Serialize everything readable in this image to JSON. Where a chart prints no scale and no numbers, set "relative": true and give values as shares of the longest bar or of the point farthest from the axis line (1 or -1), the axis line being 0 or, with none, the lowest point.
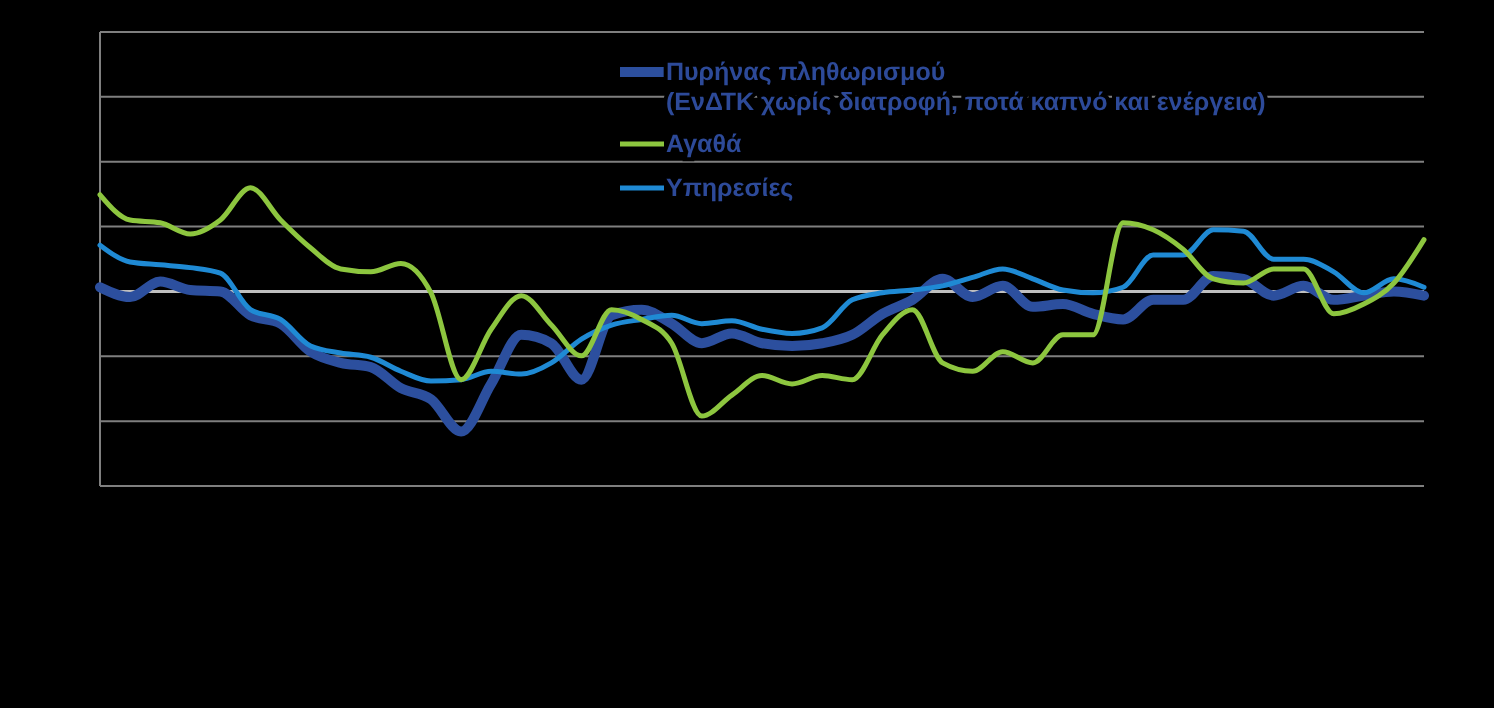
{
  "chart_data": {
    "type": "line",
    "relative": true,
    "grid": "y",
    "legend": "top",
    "line_style": "solid",
    "categories": [
      null,
      null,
      null,
      null,
      null,
      null,
      null,
      null,
      null,
      null,
      null,
      null,
      null,
      null,
      null,
      null,
      null,
      null,
      null,
      null,
      null,
      null,
      null,
      null,
      null,
      null,
      null,
      null,
      null,
      null,
      null,
      null,
      null,
      null,
      null,
      null,
      null,
      null,
      null,
      null,
      null,
      null,
      null,
      null,
      null
    ],
    "series": [
      {
        "name": "Πυρήνας πληθωρισμού\n(ΕνΔΤΚ χωρίς διατροφή, ποτά καπνό και ενέργεια)",
        "color": "#2c4f9e",
        "values": [
          0.03,
          -0.04,
          0.07,
          0.01,
          0,
          -0.17,
          -0.23,
          -0.43,
          -0.51,
          -0.54,
          -0.69,
          -0.77,
          -1,
          -0.66,
          -0.31,
          -0.37,
          -0.63,
          -0.17,
          -0.13,
          -0.23,
          -0.37,
          -0.3,
          -0.37,
          -0.39,
          -0.37,
          -0.31,
          -0.16,
          -0.06,
          0.09,
          -0.04,
          0.04,
          -0.11,
          -0.09,
          -0.16,
          -0.2,
          -0.06,
          -0.06,
          0.11,
          0.09,
          -0.03,
          0.04,
          -0.06,
          -0.03,
          0,
          -0.03
        ]
      },
      {
        "name": "Αγαθά",
        "color": "#8dc63f",
        "values": [
          0.69,
          0.51,
          0.49,
          0.41,
          0.51,
          0.74,
          0.51,
          0.31,
          0.16,
          0.14,
          0.2,
          -0.01,
          -0.63,
          -0.27,
          -0.03,
          -0.24,
          -0.46,
          -0.13,
          -0.2,
          -0.37,
          -0.89,
          -0.74,
          -0.6,
          -0.66,
          -0.6,
          -0.63,
          -0.31,
          -0.13,
          -0.51,
          -0.57,
          -0.43,
          -0.51,
          -0.31,
          -0.31,
          0.49,
          0.44,
          0.3,
          0.09,
          0.06,
          0.16,
          0.16,
          -0.16,
          -0.09,
          0.06,
          0.37
        ]
      },
      {
        "name": "Υπηρεσίες",
        "color": "#1f8ad4",
        "values": [
          0.33,
          0.21,
          0.19,
          0.17,
          0.13,
          -0.13,
          -0.2,
          -0.39,
          -0.44,
          -0.47,
          -0.57,
          -0.64,
          -0.63,
          -0.57,
          -0.59,
          -0.51,
          -0.34,
          -0.24,
          -0.2,
          -0.17,
          -0.23,
          -0.21,
          -0.27,
          -0.3,
          -0.26,
          -0.06,
          -0.01,
          0.01,
          0.04,
          0.1,
          0.16,
          0.09,
          0.01,
          -0.01,
          0.03,
          0.26,
          0.26,
          0.44,
          0.43,
          0.23,
          0.23,
          0.14,
          -0.01,
          0.09,
          0.03
        ]
      }
    ]
  }
}
